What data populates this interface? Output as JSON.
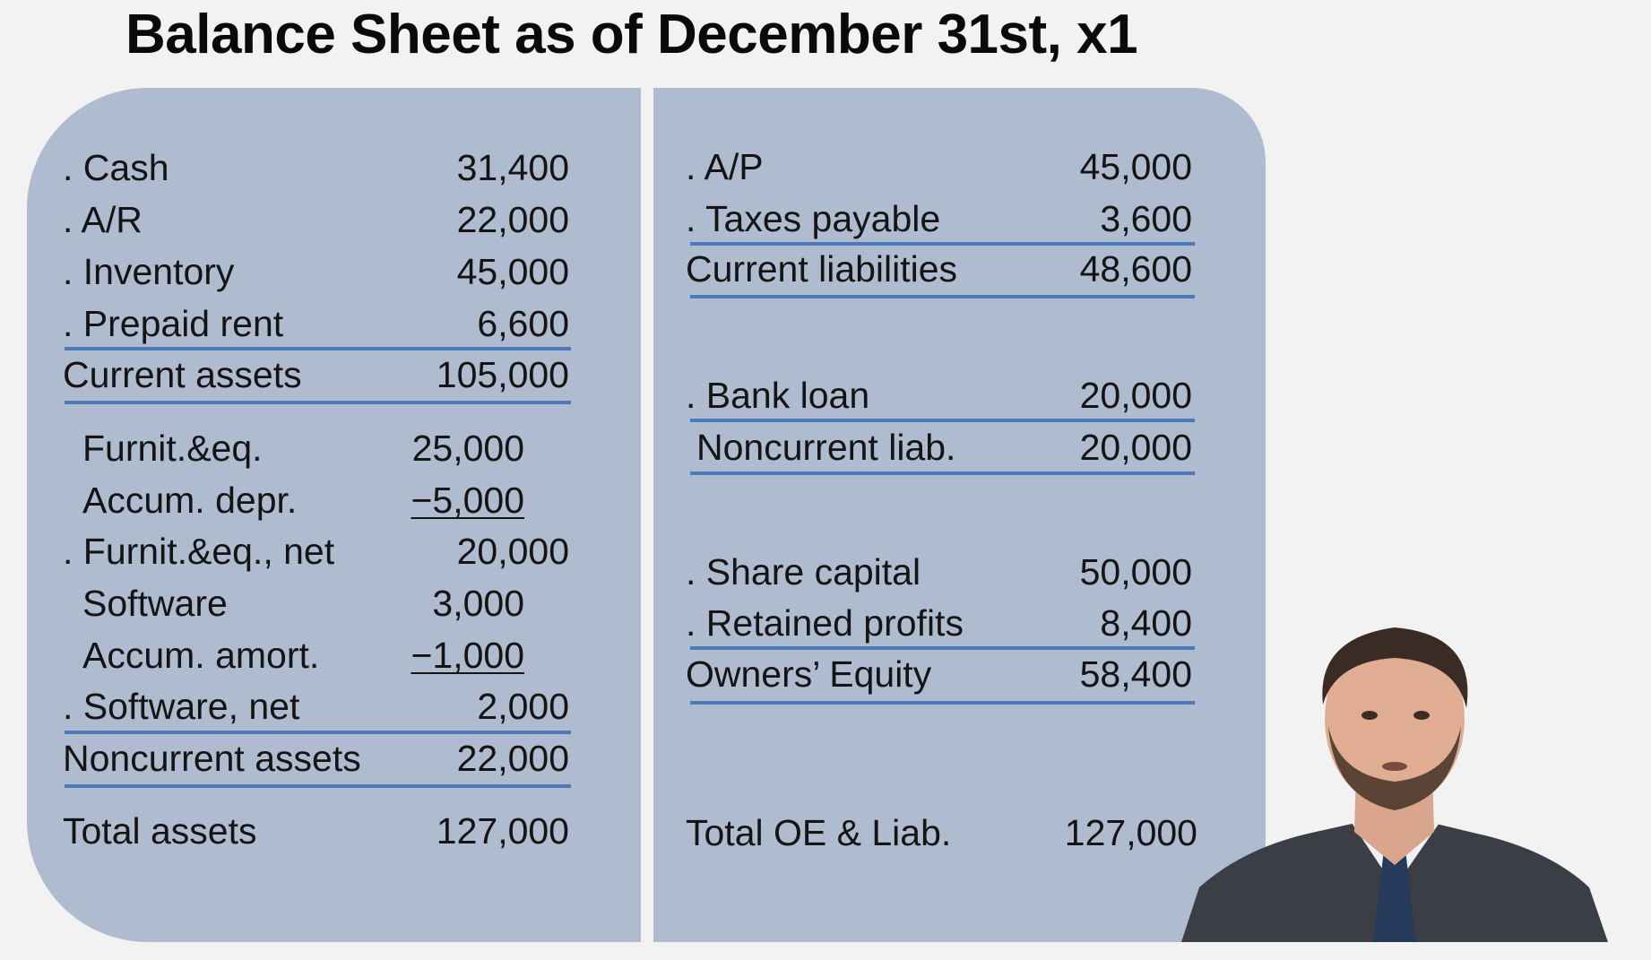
{
  "title": "Balance Sheet as of December 31st, x1",
  "assets": {
    "cash": {
      "label": ". Cash",
      "value": "31,400"
    },
    "ar": {
      "label": ". A/R",
      "value": "22,000"
    },
    "inventory": {
      "label": ". Inventory",
      "value": "45,000"
    },
    "prepaid_rent": {
      "label": ". Prepaid rent",
      "value": "6,600"
    },
    "current_assets": {
      "label": "Current assets",
      "value": "105,000"
    },
    "furniture_eq": {
      "label": "Furnit.&eq.",
      "value": "25,000"
    },
    "accum_depr": {
      "label": "Accum. depr.",
      "value": "−5,000"
    },
    "furniture_eq_net": {
      "label": ". Furnit.&eq., net",
      "value": "20,000"
    },
    "software": {
      "label": "Software",
      "value": "3,000"
    },
    "accum_amort": {
      "label": "Accum. amort.",
      "value": "−1,000"
    },
    "software_net": {
      "label": ". Software, net",
      "value": "2,000"
    },
    "noncurrent_assets": {
      "label": "Noncurrent assets",
      "value": "22,000"
    },
    "total_assets": {
      "label": "Total assets",
      "value": "127,000"
    }
  },
  "liabilities_equity": {
    "ap": {
      "label": ". A/P",
      "value": "45,000"
    },
    "taxes_payable": {
      "label": ". Taxes payable",
      "value": "3,600"
    },
    "current_liabilities": {
      "label": "Current liabilities",
      "value": "48,600"
    },
    "bank_loan": {
      "label": ". Bank loan",
      "value": "20,000"
    },
    "noncurrent_liab": {
      "label": "Noncurrent liab.",
      "value": "20,000"
    },
    "share_capital": {
      "label": ". Share capital",
      "value": "50,000"
    },
    "retained_profits": {
      "label": ". Retained profits",
      "value": "8,400"
    },
    "owners_equity": {
      "label": "Owners’ Equity",
      "value": "58,400"
    },
    "total_oe_liab": {
      "label": "Total OE & Liab.",
      "value": "127,000"
    }
  },
  "colors": {
    "panel": "#afbccf",
    "rule": "#4f78b8",
    "background": "#f2f2f2"
  },
  "presenter": {
    "icon": "presenter-video-thumbnail"
  }
}
